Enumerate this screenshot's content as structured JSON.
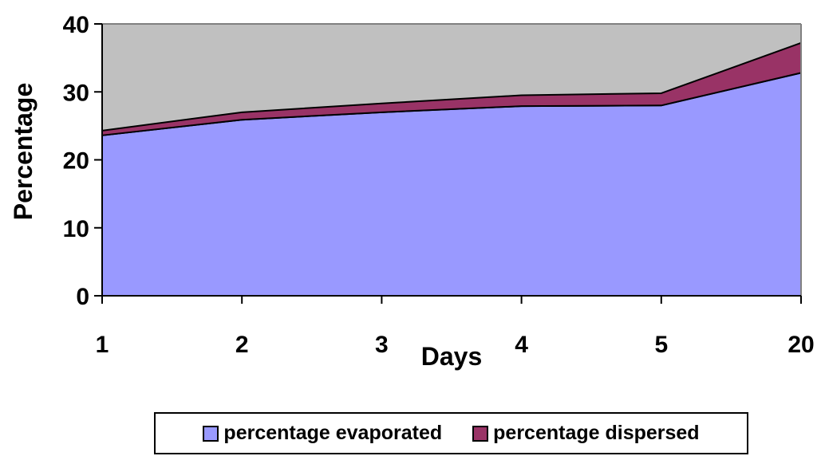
{
  "chart_data": {
    "type": "area",
    "stacked": true,
    "categories": [
      "1",
      "2",
      "3",
      "4",
      "5",
      "20"
    ],
    "series": [
      {
        "name": "percentage evaporated",
        "values": [
          23.6,
          25.9,
          27.0,
          27.9,
          28.0,
          32.8
        ],
        "color": "#9999ff"
      },
      {
        "name": "percentage dispersed",
        "values": [
          0.7,
          1.1,
          1.3,
          1.6,
          1.8,
          4.4
        ],
        "color": "#993366"
      }
    ],
    "xlabel": "Days",
    "ylabel": "Percentage",
    "ylim": [
      0,
      40
    ],
    "yticks": [
      "0",
      "10",
      "20",
      "30",
      "40"
    ],
    "plot_background": "#c0c0c0",
    "grid": false,
    "legend_position": "bottom"
  }
}
